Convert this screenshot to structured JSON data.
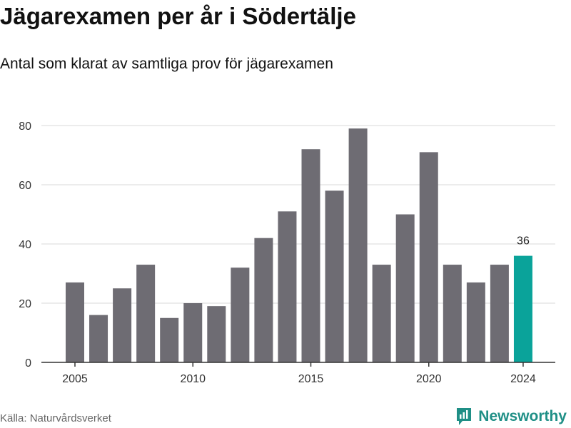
{
  "header": {
    "title": "Jägarexamen per år i Södertälje",
    "subtitle": "Antal som klarat av samtliga prov för jägarexamen"
  },
  "footer": {
    "source": "Källa: Naturvårdsverket",
    "brand": "Newsworthy"
  },
  "colors": {
    "bar": "#6e6c73",
    "highlight": "#0aa39a",
    "grid": "#d9d9d9",
    "brand": "#1f8f86"
  },
  "chart_data": {
    "type": "bar",
    "categories": [
      2005,
      2006,
      2007,
      2008,
      2009,
      2010,
      2011,
      2012,
      2013,
      2014,
      2015,
      2016,
      2017,
      2018,
      2019,
      2020,
      2021,
      2022,
      2023,
      2024
    ],
    "values": [
      27,
      16,
      25,
      33,
      15,
      20,
      19,
      32,
      42,
      51,
      72,
      58,
      79,
      33,
      50,
      71,
      33,
      27,
      33,
      36
    ],
    "highlight_index": 19,
    "data_labels": [
      {
        "index": 19,
        "text": "36"
      }
    ],
    "x_ticks": [
      2005,
      2010,
      2015,
      2020,
      2024
    ],
    "y_ticks": [
      0,
      20,
      40,
      60,
      80
    ],
    "ylim": [
      0,
      80
    ],
    "grid": true,
    "xlabel": "",
    "ylabel": ""
  }
}
